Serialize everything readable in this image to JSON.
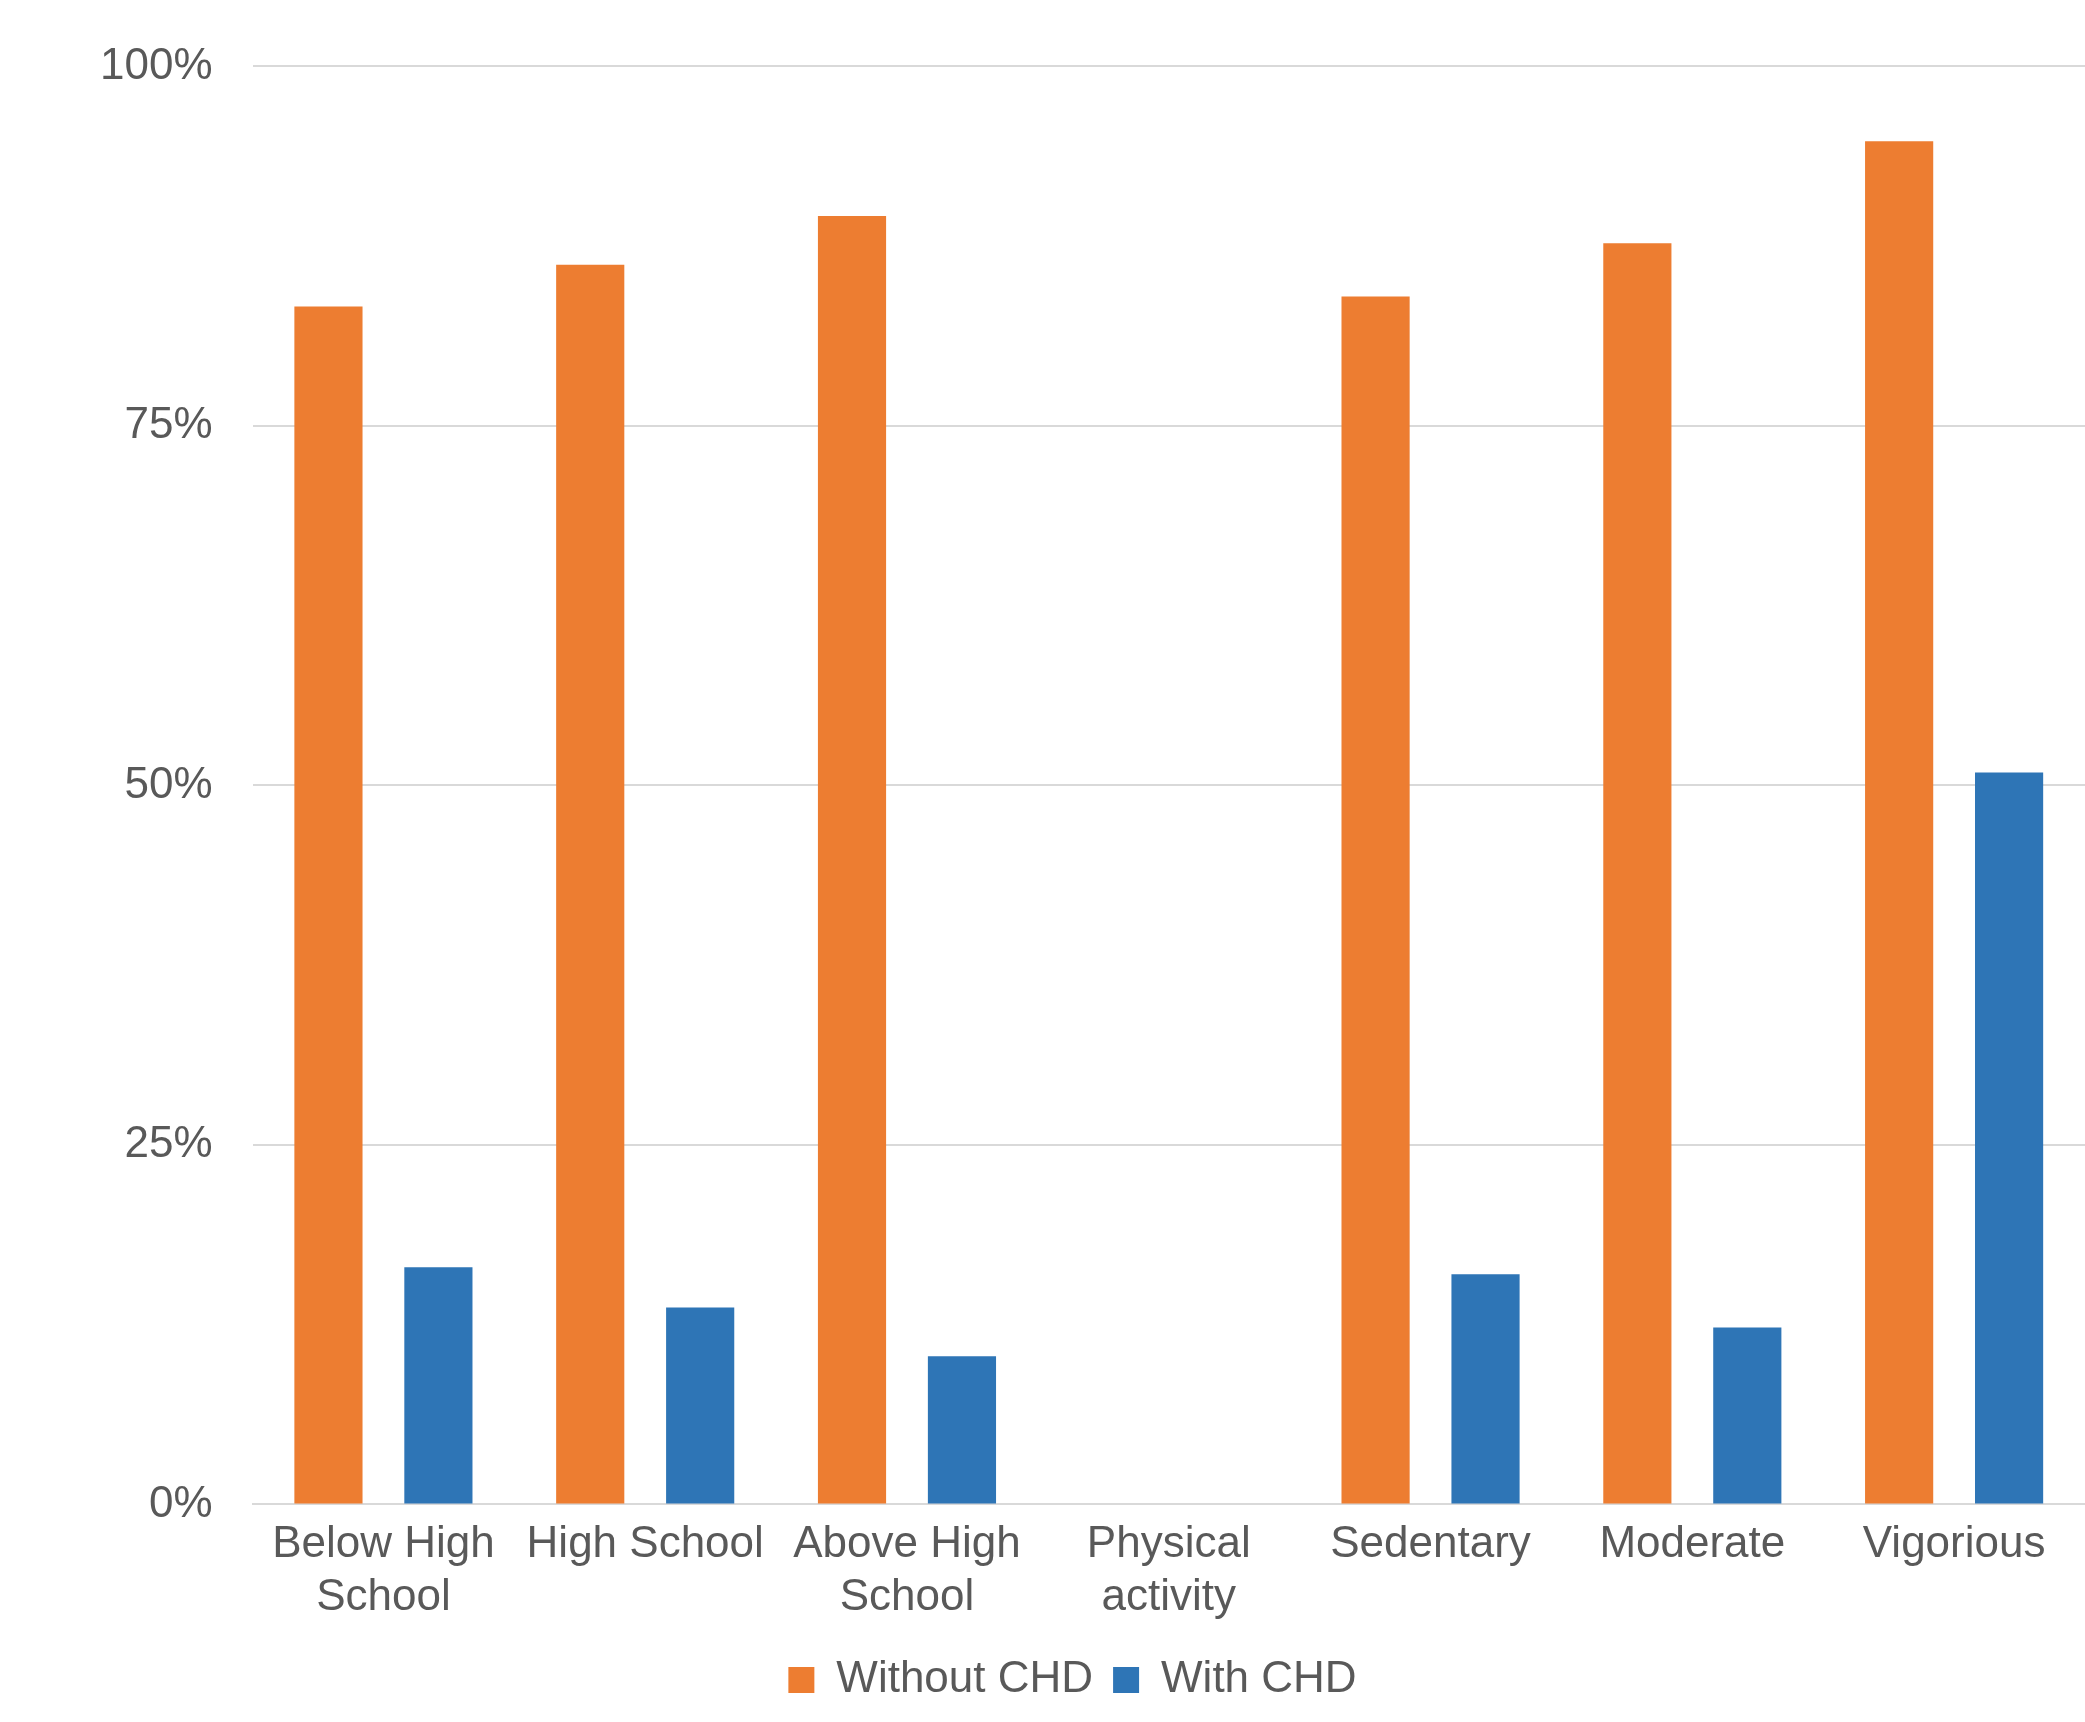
{
  "chart_data": {
    "type": "bar",
    "categories": [
      "Below High School",
      "High School",
      "Above High School",
      "Physical activity",
      "Sedentary",
      "Moderate",
      "Vigorious"
    ],
    "series": [
      {
        "name": "Without CHD",
        "color": "#ed7d31",
        "values": [
          83.3,
          86.2,
          89.6,
          null,
          84.0,
          87.7,
          94.8
        ]
      },
      {
        "name": "With CHD",
        "color": "#2e75b6",
        "values": [
          16.5,
          13.7,
          10.3,
          null,
          16.0,
          12.3,
          50.9
        ]
      }
    ],
    "ylim": [
      0,
      100
    ],
    "yticks": [
      {
        "value": 0,
        "label": "0%"
      },
      {
        "value": 25,
        "label": "25%"
      },
      {
        "value": 50,
        "label": "50%"
      },
      {
        "value": 75,
        "label": "75%"
      },
      {
        "value": 100,
        "label": "100%"
      }
    ],
    "grid": "y",
    "legend": "bottom"
  }
}
